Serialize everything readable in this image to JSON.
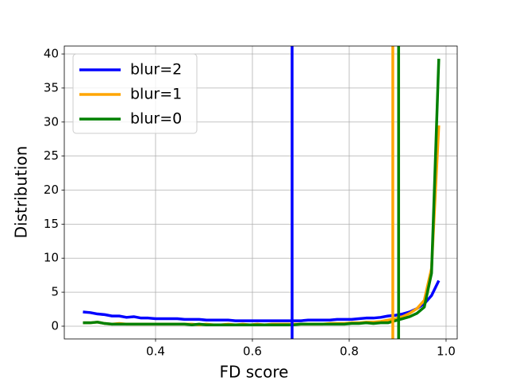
{
  "chart_data": {
    "type": "line",
    "xlabel": "FD score",
    "ylabel": "Distribution",
    "x": [
      0.25,
      0.265,
      0.28,
      0.295,
      0.31,
      0.325,
      0.34,
      0.355,
      0.37,
      0.385,
      0.4,
      0.415,
      0.43,
      0.445,
      0.46,
      0.475,
      0.49,
      0.505,
      0.52,
      0.535,
      0.55,
      0.565,
      0.58,
      0.595,
      0.61,
      0.625,
      0.64,
      0.655,
      0.67,
      0.685,
      0.7,
      0.715,
      0.73,
      0.745,
      0.76,
      0.775,
      0.79,
      0.805,
      0.82,
      0.835,
      0.85,
      0.865,
      0.88,
      0.895,
      0.91,
      0.925,
      0.94,
      0.955,
      0.97,
      0.985
    ],
    "series": [
      {
        "name": "blur=2",
        "color": "#0000ff",
        "vline": 0.682,
        "values": [
          2.1,
          2.0,
          1.8,
          1.7,
          1.5,
          1.5,
          1.3,
          1.4,
          1.2,
          1.2,
          1.1,
          1.1,
          1.1,
          1.1,
          1.0,
          1.0,
          1.0,
          0.9,
          0.9,
          0.9,
          0.9,
          0.8,
          0.8,
          0.8,
          0.8,
          0.8,
          0.8,
          0.8,
          0.8,
          0.8,
          0.8,
          0.9,
          0.9,
          0.9,
          0.9,
          1.0,
          1.0,
          1.0,
          1.1,
          1.2,
          1.2,
          1.3,
          1.5,
          1.6,
          1.8,
          2.1,
          2.6,
          3.3,
          4.5,
          6.7
        ]
      },
      {
        "name": "blur=1",
        "color": "#ffa500",
        "vline": 0.89,
        "values": [
          0.5,
          0.5,
          0.6,
          0.4,
          0.3,
          0.4,
          0.3,
          0.3,
          0.3,
          0.3,
          0.3,
          0.3,
          0.3,
          0.3,
          0.3,
          0.3,
          0.2,
          0.3,
          0.2,
          0.2,
          0.3,
          0.2,
          0.3,
          0.2,
          0.3,
          0.2,
          0.3,
          0.3,
          0.3,
          0.3,
          0.3,
          0.3,
          0.3,
          0.3,
          0.4,
          0.4,
          0.4,
          0.5,
          0.5,
          0.6,
          0.6,
          0.7,
          0.9,
          1.1,
          1.4,
          1.9,
          2.6,
          3.8,
          8.5,
          29.5
        ]
      },
      {
        "name": "blur=0",
        "color": "#008000",
        "vline": 0.902,
        "values": [
          0.5,
          0.5,
          0.6,
          0.4,
          0.3,
          0.3,
          0.3,
          0.3,
          0.3,
          0.3,
          0.3,
          0.3,
          0.3,
          0.3,
          0.3,
          0.2,
          0.3,
          0.2,
          0.2,
          0.2,
          0.2,
          0.2,
          0.2,
          0.2,
          0.2,
          0.2,
          0.2,
          0.2,
          0.2,
          0.2,
          0.3,
          0.3,
          0.3,
          0.3,
          0.3,
          0.3,
          0.3,
          0.4,
          0.4,
          0.5,
          0.4,
          0.5,
          0.5,
          0.8,
          1.1,
          1.4,
          1.9,
          2.8,
          7.8,
          39.3
        ]
      }
    ],
    "xlim": [
      0.2115,
      1.023
    ],
    "ylim": [
      -1.87,
      41.17
    ],
    "xticks": [
      0.4,
      0.6,
      0.8,
      {
        "value": 1,
        "label": "1.0"
      }
    ],
    "yticks": [
      0,
      5,
      10,
      15,
      20,
      25,
      30,
      35,
      40
    ],
    "grid": true,
    "legend": "upper left"
  }
}
